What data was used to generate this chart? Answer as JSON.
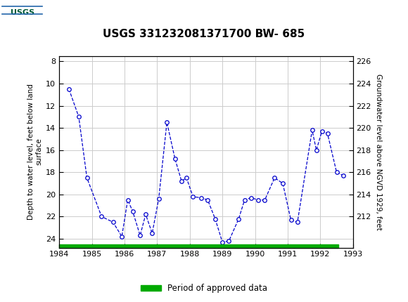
{
  "title": "USGS 331232081371700 BW- 685",
  "ylabel_left": "Depth to water level, feet below land\nsurface",
  "ylabel_right": "Groundwater level above NGVD 1929, feet",
  "xlim": [
    1984,
    1993
  ],
  "ylim_left": [
    24.8,
    7.5
  ],
  "yticks_left": [
    8,
    10,
    12,
    14,
    16,
    18,
    20,
    22,
    24
  ],
  "yticks_right": [
    226,
    224,
    222,
    220,
    218,
    216,
    214,
    212
  ],
  "xticks": [
    1984,
    1985,
    1986,
    1987,
    1988,
    1989,
    1990,
    1991,
    1992,
    1993
  ],
  "data_x": [
    1984.3,
    1984.6,
    1984.85,
    1985.3,
    1985.65,
    1985.92,
    1986.1,
    1986.25,
    1986.48,
    1986.65,
    1986.85,
    1987.05,
    1987.3,
    1987.55,
    1987.75,
    1987.9,
    1988.1,
    1988.35,
    1988.55,
    1988.78,
    1989.0,
    1989.2,
    1989.5,
    1989.68,
    1989.88,
    1990.1,
    1990.3,
    1990.6,
    1990.85,
    1991.1,
    1991.3,
    1991.75,
    1991.88,
    1992.05,
    1992.22,
    1992.5,
    1992.7
  ],
  "data_y": [
    10.5,
    13.0,
    18.5,
    22.0,
    22.5,
    23.8,
    20.5,
    21.5,
    23.7,
    21.8,
    23.5,
    20.4,
    13.5,
    16.8,
    18.8,
    18.5,
    20.2,
    20.3,
    20.5,
    22.2,
    24.3,
    24.2,
    22.2,
    20.5,
    20.3,
    20.5,
    20.5,
    18.5,
    19.0,
    22.3,
    22.5,
    14.2,
    16.0,
    14.3,
    14.5,
    18.0,
    18.3
  ],
  "line_color": "#0000CC",
  "marker_color": "#0000CC",
  "marker_face": "white",
  "linestyle": "--",
  "marker": "o",
  "marker_size": 4,
  "green_bar_xstart": 1984.0,
  "green_bar_xend": 1992.55,
  "green_bar_color": "#00AA00",
  "green_bar_height": 0.28,
  "legend_label": "Period of approved data",
  "header_color": "#005A38",
  "background_color": "#ffffff",
  "grid_color": "#cccccc",
  "title_fontsize": 11,
  "axis_fontsize": 7.5,
  "tick_fontsize": 8
}
